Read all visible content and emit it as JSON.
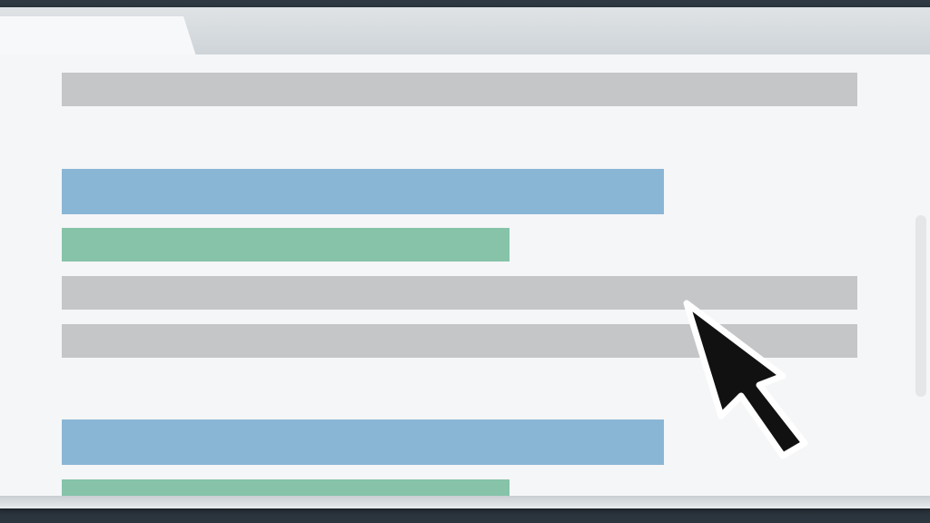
{
  "window": {
    "tab_title": "",
    "content_rows": [
      {
        "kind": "gray"
      },
      {
        "kind": "blue"
      },
      {
        "kind": "green"
      },
      {
        "kind": "gray"
      },
      {
        "kind": "gray"
      },
      {
        "kind": "blue"
      },
      {
        "kind": "green"
      }
    ]
  },
  "colors": {
    "gray_bar": "#c4c6c8",
    "blue_bar": "#8ab6d6",
    "green_bar": "#86c3a9",
    "page_background": "#f5f6f7",
    "cursor": "#111111"
  },
  "icons": {
    "cursor": "mouse-pointer-icon"
  }
}
